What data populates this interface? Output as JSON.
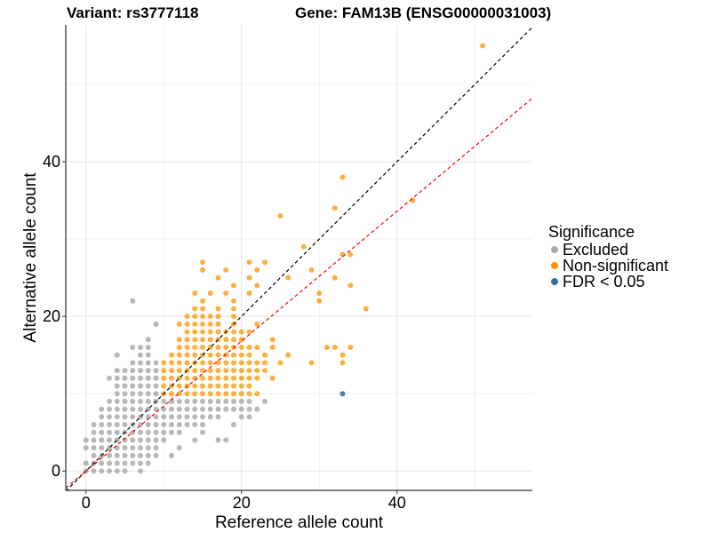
{
  "chart_data": {
    "type": "scatter",
    "title_left": "Variant: rs3777118",
    "title_right": "Gene: FAM13B (ENSG00000031003)",
    "xlabel": "Reference allele count",
    "ylabel": "Alternative allele count",
    "xlim": [
      -2.6,
      57.4
    ],
    "ylim": [
      -2.5,
      57.7
    ],
    "xticks": [
      0,
      20,
      40
    ],
    "yticks": [
      0,
      20,
      40
    ],
    "minor_grid": [
      10,
      30,
      50
    ],
    "grid": true,
    "legend": {
      "title": "Significance",
      "placement": "right",
      "entries": [
        {
          "label": "Excluded",
          "color": "#aaaaaa"
        },
        {
          "label": "Non-significant",
          "color": "#ff9400"
        },
        {
          "label": "FDR < 0.05",
          "color": "#3a6ea5"
        }
      ]
    },
    "reference_lines": [
      {
        "name": "identity",
        "slope": 1.0,
        "color": "#000000",
        "dash": true
      },
      {
        "name": "fit",
        "slope": 0.84,
        "color": "#ff0000",
        "dash": true
      }
    ],
    "series": [
      {
        "name": "Excluded",
        "rows": [
          {
            "y": 0,
            "x": [
              [
                0,
                5
              ],
              7
            ]
          },
          {
            "y": 1,
            "x": [
              [
                0,
                8
              ]
            ]
          },
          {
            "y": 2,
            "x": [
              [
                1,
                9
              ],
              11
            ]
          },
          {
            "y": 3,
            "x": [
              [
                0,
                9
              ],
              12
            ]
          },
          {
            "y": 4,
            "x": [
              [
                0,
                10
              ],
              14,
              17,
              18
            ]
          },
          {
            "y": 5,
            "x": [
              [
                1,
                12
              ],
              15
            ]
          },
          {
            "y": 6,
            "x": [
              [
                1,
                15
              ],
              19
            ]
          },
          {
            "y": 7,
            "x": [
              [
                2,
                17
              ],
              20,
              21
            ]
          },
          {
            "y": 8,
            "x": [
              [
                2,
                22
              ]
            ]
          },
          {
            "y": 9,
            "x": [
              [
                3,
                21
              ],
              23
            ]
          },
          {
            "y": 10,
            "x": [
              [
                4,
                9
              ]
            ]
          },
          {
            "y": 11,
            "x": [
              [
                4,
                9
              ]
            ]
          },
          {
            "y": 12,
            "x": [
              [
                3,
                9
              ]
            ]
          },
          {
            "y": 13,
            "x": [
              [
                4,
                9
              ]
            ]
          },
          {
            "y": 14,
            "x": [
              [
                6,
                9
              ]
            ]
          },
          {
            "y": 15,
            "x": [
              4,
              7,
              8
            ]
          },
          {
            "y": 16,
            "x": [
              [
                6,
                8
              ]
            ]
          },
          {
            "y": 17,
            "x": [
              8
            ]
          },
          {
            "y": 19,
            "x": [
              9
            ]
          },
          {
            "y": 22,
            "x": [
              6
            ]
          }
        ]
      },
      {
        "name": "Non-significant",
        "rows": [
          {
            "y": 10,
            "x": [
              [
                10,
                22
              ]
            ]
          },
          {
            "y": 11,
            "x": [
              [
                10,
                21
              ]
            ]
          },
          {
            "y": 12,
            "x": [
              [
                10,
                22
              ],
              24
            ]
          },
          {
            "y": 13,
            "x": [
              [
                10,
                23
              ]
            ]
          },
          {
            "y": 14,
            "x": [
              [
                10,
                23
              ],
              25,
              29,
              33
            ]
          },
          {
            "y": 15,
            "x": [
              [
                11,
                21
              ],
              23,
              26,
              33
            ]
          },
          {
            "y": 16,
            "x": [
              [
                12,
                22
              ],
              24,
              31,
              32,
              34
            ]
          },
          {
            "y": 17,
            "x": [
              [
                12,
                20
              ],
              24
            ]
          },
          {
            "y": 18,
            "x": [
              [
                13,
                21
              ]
            ]
          },
          {
            "y": 19,
            "x": [
              [
                12,
                17
              ],
              19,
              22
            ]
          },
          {
            "y": 20,
            "x": [
              [
                13,
                17
              ],
              19
            ]
          },
          {
            "y": 21,
            "x": [
              14,
              15,
              17,
              19,
              36
            ]
          },
          {
            "y": 22,
            "x": [
              15,
              19,
              30
            ]
          },
          {
            "y": 23,
            "x": [
              14,
              16,
              18,
              21,
              30
            ]
          },
          {
            "y": 24,
            "x": [
              19,
              22,
              34
            ]
          },
          {
            "y": 25,
            "x": [
              17,
              21,
              26,
              32
            ]
          },
          {
            "y": 26,
            "x": [
              15,
              18,
              22,
              29
            ]
          },
          {
            "y": 27,
            "x": [
              15,
              21,
              23
            ]
          },
          {
            "y": 28,
            "x": [
              33,
              34
            ]
          },
          {
            "y": 29,
            "x": [
              28
            ]
          },
          {
            "y": 33,
            "x": [
              25
            ]
          },
          {
            "y": 34,
            "x": [
              32
            ]
          },
          {
            "y": 35,
            "x": [
              42
            ]
          },
          {
            "y": 38,
            "x": [
              33
            ]
          },
          {
            "y": 55,
            "x": [
              51
            ]
          }
        ]
      },
      {
        "name": "FDR < 0.05",
        "rows": [
          {
            "y": 10,
            "x": [
              33
            ]
          }
        ]
      }
    ]
  }
}
